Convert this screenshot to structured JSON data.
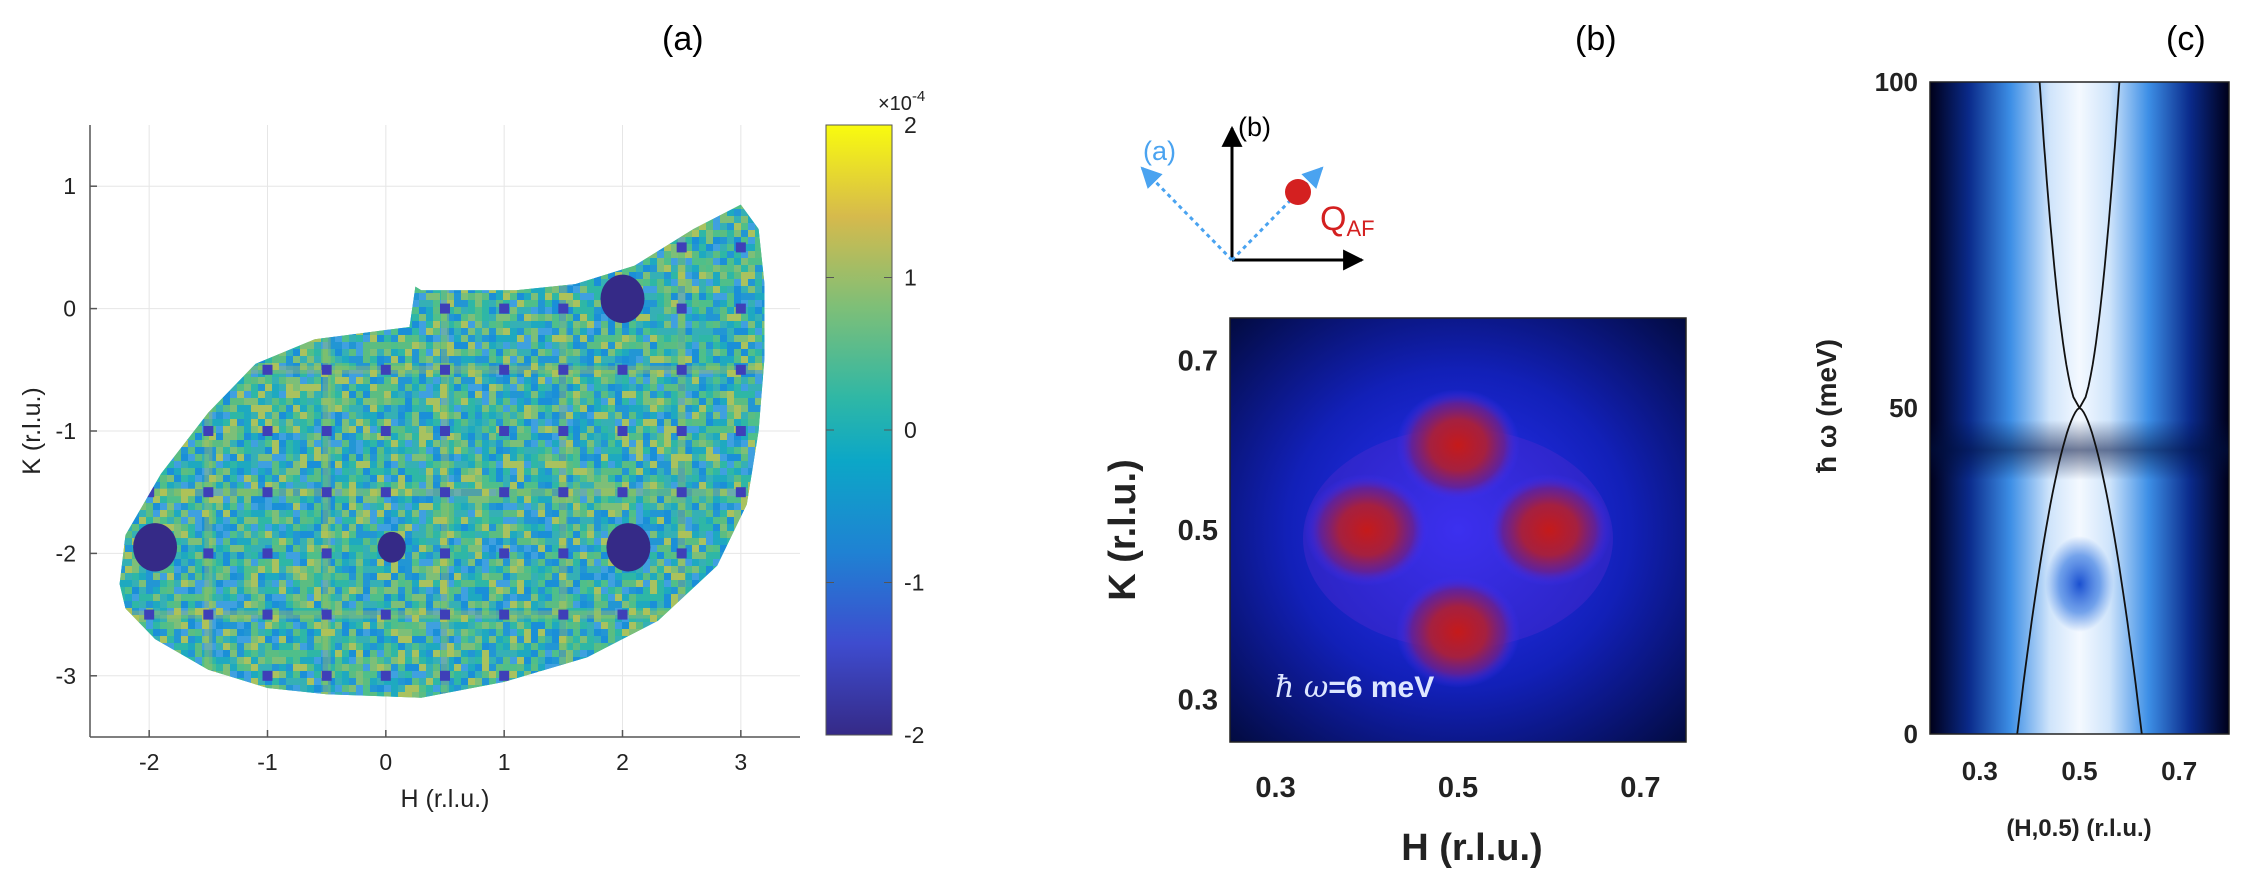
{
  "figure": {
    "panel_labels": [
      "(a)",
      "(b)",
      "(c)"
    ]
  },
  "colors": {
    "parula_low": "#352a87",
    "parula_mid": "#2eb7a6",
    "parula_high": "#f9fb0e",
    "neutron_blue": "#1f2bff",
    "neutron_red": "#cc1f1f",
    "arrow_blue": "#4aa3f0",
    "qaf_red": "#d42020",
    "panel_c_dark": "#00001a",
    "panel_c_light": "#eef6ff"
  },
  "chart_data": [
    {
      "id": "a",
      "type": "heatmap",
      "title": "",
      "xlabel": "H (r.l.u.)",
      "ylabel": "K (r.l.u.)",
      "xlim": [
        -2.5,
        3.5
      ],
      "ylim": [
        -3.5,
        1.5
      ],
      "xticks": [
        -2,
        -1,
        0,
        1,
        2,
        3
      ],
      "xtick_labels": [
        "-2",
        "-1",
        "0",
        "1",
        "2",
        "3"
      ],
      "yticks": [
        1,
        0,
        -1,
        -2,
        -3
      ],
      "ytick_labels": [
        "1",
        "0",
        "-1",
        "-2",
        "-3"
      ],
      "grid": true,
      "colorbar": {
        "min": -2,
        "max": 2,
        "ticks": [
          2,
          1,
          0,
          -1,
          -2
        ],
        "tick_labels": [
          "2",
          "1",
          "0",
          "-1",
          "-2"
        ],
        "exponent_label": "×10",
        "exponent_power": "-4"
      },
      "intensity_min_spots": [
        {
          "h": -1.95,
          "k": -1.95,
          "size": "large"
        },
        {
          "h": 2.05,
          "k": -1.95,
          "size": "large"
        },
        {
          "h": 2.0,
          "k": 0.08,
          "size": "large"
        },
        {
          "h": 0.05,
          "k": -1.95,
          "size": "medium"
        }
      ]
    },
    {
      "id": "b",
      "type": "heatmap",
      "title": "",
      "xlabel": "H (r.l.u.)",
      "ylabel": "K (r.l.u.)",
      "xlim": [
        0.25,
        0.75
      ],
      "ylim": [
        0.25,
        0.75
      ],
      "xticks": [
        0.3,
        0.5,
        0.7
      ],
      "xtick_labels": [
        "0.3",
        "0.5",
        "0.7"
      ],
      "yticks": [
        0.7,
        0.5,
        0.3
      ],
      "ytick_labels": [
        "0.7",
        "0.5",
        "0.3"
      ],
      "annotation": {
        "symbol": "ħ ω",
        "text": "=6 meV"
      },
      "peaks": [
        {
          "h": 0.5,
          "k": 0.6
        },
        {
          "h": 0.4,
          "k": 0.5
        },
        {
          "h": 0.6,
          "k": 0.5
        },
        {
          "h": 0.5,
          "k": 0.38
        }
      ],
      "inset": {
        "arrow_a_label": "(a)",
        "arrow_b_label": "(b)",
        "qaf_main": "Q",
        "qaf_sub": "AF"
      }
    },
    {
      "id": "c",
      "type": "heatmap",
      "title": "",
      "xlabel": "(H,0.5) (r.l.u.)",
      "ylabel": "ħ ω   (meV)",
      "xlim": [
        0.2,
        0.8
      ],
      "ylim": [
        0,
        100
      ],
      "xticks": [
        0.3,
        0.5,
        0.7
      ],
      "xtick_labels": [
        "0.3",
        "0.5",
        "0.7"
      ],
      "yticks": [
        100,
        50,
        0
      ],
      "ytick_labels": [
        "100",
        "50",
        "0"
      ],
      "dispersion": {
        "node_energy": 50,
        "upper_branch_h_at_100": [
          0.42,
          0.58
        ],
        "lower_branch_h_at_0": [
          0.375,
          0.625
        ]
      },
      "bright_spot": {
        "h": 0.5,
        "e": 23
      }
    }
  ]
}
